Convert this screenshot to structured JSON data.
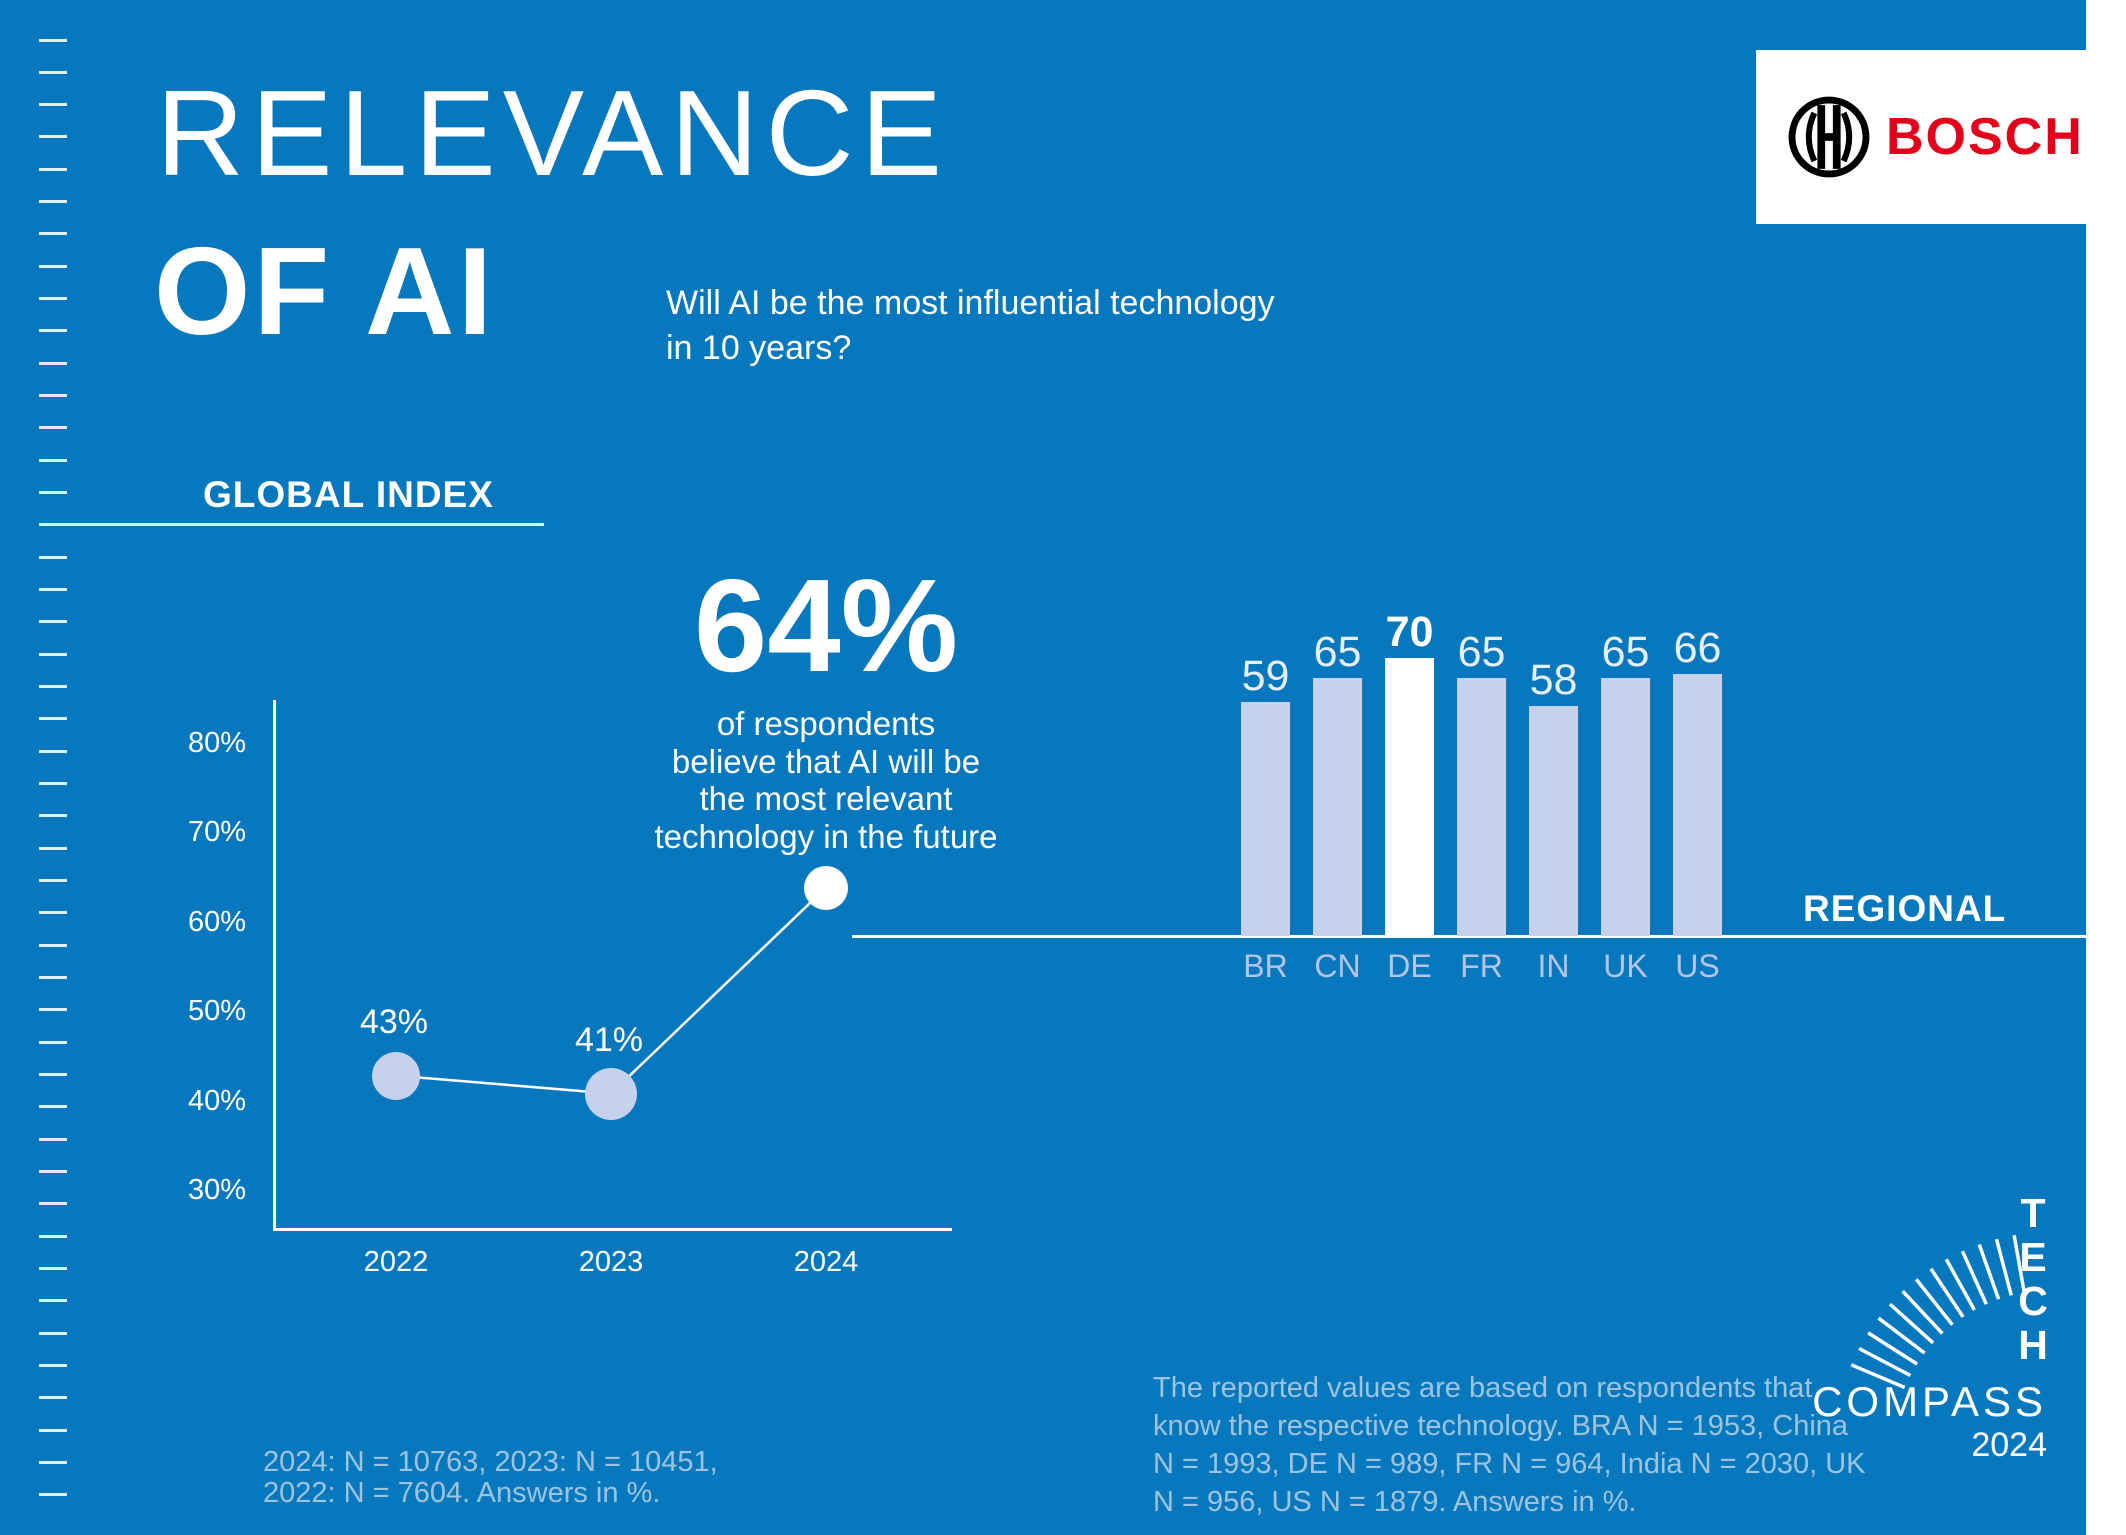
{
  "title": {
    "line1": "RELEVANCE",
    "line2": "OF AI"
  },
  "subtitle": {
    "line1": "Will AI be the most influential technology",
    "line2": "in 10 years?"
  },
  "brand": {
    "logo_text": "BOSCH"
  },
  "sections": {
    "global_index": "GLOBAL INDEX",
    "regional": "REGIONAL"
  },
  "highlight": {
    "value": "64%",
    "caption_lines": [
      "of respondents",
      "believe that AI will be",
      "the most relevant",
      "technology in the future"
    ]
  },
  "chart_data": [
    {
      "type": "line",
      "title": "GLOBAL INDEX",
      "x": [
        "2022",
        "2023",
        "2024"
      ],
      "values": [
        43,
        41,
        64
      ],
      "point_labels": [
        "43%",
        "41%"
      ],
      "highlight_point_label": "64%",
      "yticks": [
        "30%",
        "40%",
        "50%",
        "60%",
        "70%",
        "80%"
      ],
      "ylim": [
        25,
        85
      ],
      "grid": false,
      "legend": "none",
      "point_styles": [
        "lavender",
        "lavender",
        "white"
      ]
    },
    {
      "type": "bar",
      "title": "REGIONAL",
      "categories": [
        "BR",
        "CN",
        "DE",
        "FR",
        "IN",
        "UK",
        "US"
      ],
      "values": [
        59,
        65,
        70,
        65,
        58,
        65,
        66
      ],
      "highlight_index": 2,
      "ylim": [
        0,
        75
      ],
      "grid": false
    }
  ],
  "footnotes": {
    "left_lines": [
      "2024: N = 10763, 2023: N = 10451,",
      "2022: N = 7604. Answers in %."
    ],
    "right_lines": [
      "The reported values are based on respondents that",
      "know the respective technology. BRA N = 1953, China",
      "N = 1993, DE N = 989, FR N = 964, India N = 2030, UK",
      "N = 956, US N = 1879. Answers in %."
    ]
  },
  "tech_compass": {
    "tech_letters": [
      "T",
      "E",
      "C",
      "H"
    ],
    "compass": "COMPASS",
    "year": "2024"
  },
  "colors": {
    "background": "#0878BE",
    "lavender": "#C6D2EC",
    "bar_value_label": "#E9EFFA",
    "country_label": "#B6C5E6",
    "footnote": "#9DC4DE",
    "bosch_red": "#E2001A",
    "white": "#FFFFFF"
  }
}
